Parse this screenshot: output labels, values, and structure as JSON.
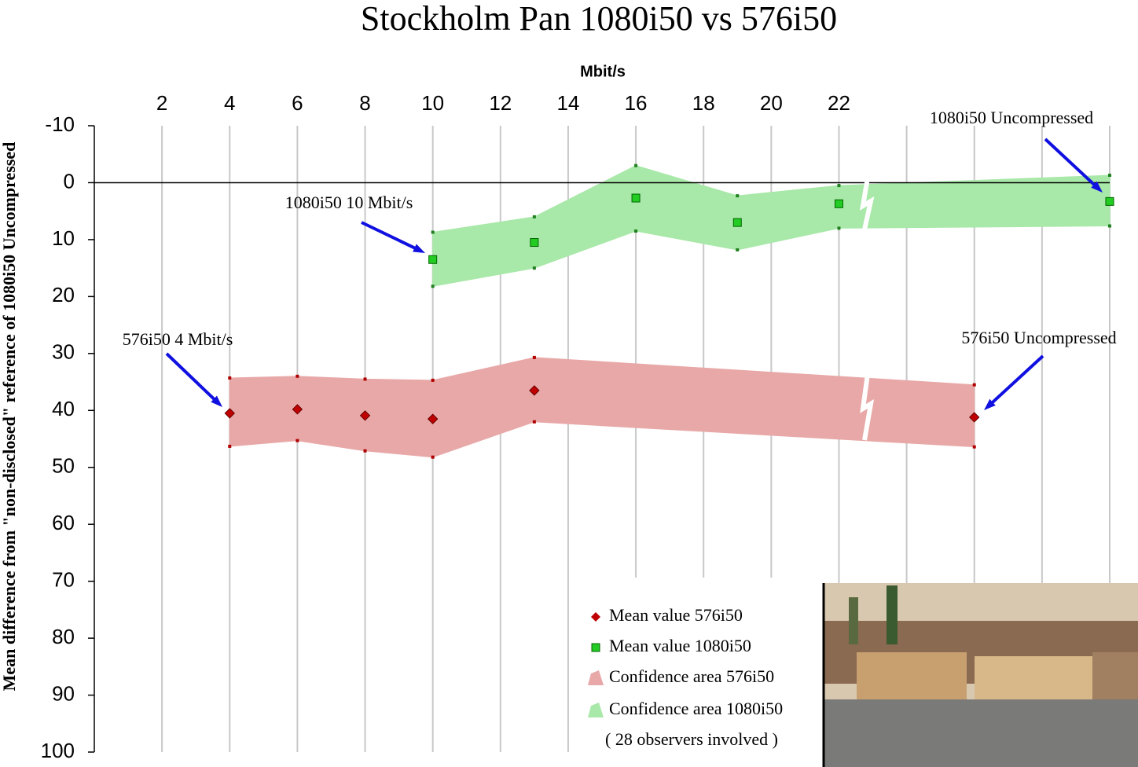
{
  "chart_data": {
    "type": "line",
    "title": "Stockholm Pan 1080i50 vs 576i50",
    "x_label": "Mbit/s",
    "y_label": "Mean difference from \"non-disclosed\" reference of 1080i50 Uncompressed",
    "xlim": [
      0,
      30
    ],
    "xticks": [
      2,
      4,
      6,
      8,
      10,
      12,
      14,
      16,
      18,
      20,
      22,
      {
        "value": 24,
        "label": null
      },
      {
        "value": 26,
        "label": null
      },
      {
        "value": 28,
        "label": null
      },
      {
        "value": 30,
        "label": null
      }
    ],
    "ylim": [
      -10,
      100
    ],
    "yticks": [
      -10,
      0,
      10,
      20,
      30,
      40,
      50,
      60,
      70,
      80,
      90,
      100
    ],
    "y_inverted": true,
    "grid": true,
    "series": [
      {
        "name": "Mean value 576i50",
        "color": "#c00000",
        "marker": "diamond",
        "x": [
          4,
          6,
          8,
          10,
          13,
          26
        ],
        "values": [
          40.5,
          39.8,
          40.9,
          41.5,
          36.5,
          41.2
        ],
        "band_name": "Confidence area 576i50",
        "band_color": "#e8a8a8",
        "band_low": [
          34.3,
          34,
          34.5,
          34.7,
          30.7,
          35.5
        ],
        "band_high": [
          46.3,
          45.3,
          47.1,
          48.2,
          42,
          46.4
        ]
      },
      {
        "name": "Mean value 1080i50",
        "color": "#22cc22",
        "marker": "square",
        "x": [
          10,
          13,
          16,
          19,
          22,
          30
        ],
        "values": [
          13.5,
          10.5,
          2.7,
          7,
          3.7,
          3.3
        ],
        "band_name": "Confidence area 1080i50",
        "band_color": "#a8e8a8",
        "band_low": [
          8.7,
          6,
          -3,
          2.3,
          0.5,
          -1.3
        ],
        "band_high": [
          18.2,
          15,
          8.5,
          11.8,
          8,
          7.6
        ]
      }
    ],
    "annotations": [
      "1080i50 Uncompressed",
      "1080i50  10 Mbit/s",
      "576i50  4 Mbit/s",
      "576i50 Uncompressed"
    ],
    "legend_note": "( 28 observers involved )"
  }
}
